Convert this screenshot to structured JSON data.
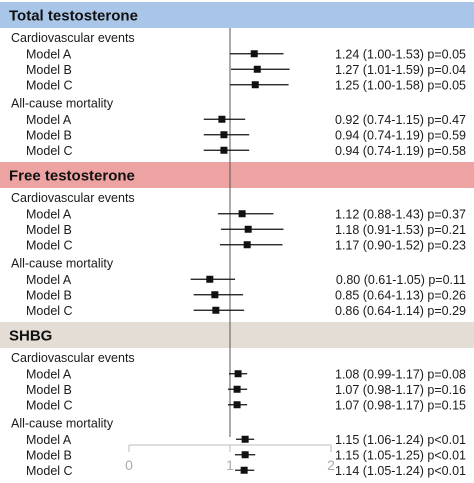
{
  "chart_data": {
    "type": "forest",
    "xlim": [
      0,
      2
    ],
    "reference_line": 1,
    "xticks": [
      "0",
      "1",
      "2"
    ],
    "colors": {
      "Total testosterone": "#a9c6e8",
      "Free testosterone": "#eea3a3",
      "SHBG": "#e3ddd6",
      "marker": "#111111",
      "reference": "#555555",
      "axis": "#bbbbbb"
    },
    "sections": [
      {
        "title": "Total testosterone",
        "groups": [
          {
            "name": "Cardiovascular events",
            "rows": [
              {
                "label": "Model A",
                "estimate": 1.24,
                "ci_low": 1.0,
                "ci_high": 1.53,
                "text": "1.24 (1.00-1.53) p=0.05"
              },
              {
                "label": "Model B",
                "estimate": 1.27,
                "ci_low": 1.01,
                "ci_high": 1.59,
                "text": "1.27 (1.01-1.59) p=0.04"
              },
              {
                "label": "Model C",
                "estimate": 1.25,
                "ci_low": 1.0,
                "ci_high": 1.58,
                "text": "1.25 (1.00-1.58) p=0.05"
              }
            ]
          },
          {
            "name": "All-cause mortality",
            "rows": [
              {
                "label": "Model A",
                "estimate": 0.92,
                "ci_low": 0.74,
                "ci_high": 1.15,
                "text": "0.92 (0.74-1.15) p=0.47"
              },
              {
                "label": "Model B",
                "estimate": 0.94,
                "ci_low": 0.74,
                "ci_high": 1.19,
                "text": "0.94 (0.74-1.19) p=0.59"
              },
              {
                "label": "Model C",
                "estimate": 0.94,
                "ci_low": 0.74,
                "ci_high": 1.19,
                "text": "0.94 (0.74-1.19) p=0.58"
              }
            ]
          }
        ]
      },
      {
        "title": "Free testosterone",
        "groups": [
          {
            "name": "Cardiovascular events",
            "rows": [
              {
                "label": "Model A",
                "estimate": 1.12,
                "ci_low": 0.88,
                "ci_high": 1.43,
                "text": "1.12 (0.88-1.43) p=0.37"
              },
              {
                "label": "Model B",
                "estimate": 1.18,
                "ci_low": 0.91,
                "ci_high": 1.53,
                "text": "1.18 (0.91-1.53) p=0.21"
              },
              {
                "label": "Model C",
                "estimate": 1.17,
                "ci_low": 0.9,
                "ci_high": 1.52,
                "text": "1.17 (0.90-1.52) p=0.23"
              }
            ]
          },
          {
            "name": "All-cause mortality",
            "rows": [
              {
                "label": "Model A",
                "estimate": 0.8,
                "ci_low": 0.61,
                "ci_high": 1.05,
                "text": "0.80 (0.61-1.05) p=0.11"
              },
              {
                "label": "Model B",
                "estimate": 0.85,
                "ci_low": 0.64,
                "ci_high": 1.13,
                "text": "0.85 (0.64-1.13) p=0.26"
              },
              {
                "label": "Model C",
                "estimate": 0.86,
                "ci_low": 0.64,
                "ci_high": 1.14,
                "text": "0.86 (0.64-1.14) p=0.29"
              }
            ]
          }
        ]
      },
      {
        "title": "SHBG",
        "groups": [
          {
            "name": "Cardiovascular events",
            "rows": [
              {
                "label": "Model A",
                "estimate": 1.08,
                "ci_low": 0.99,
                "ci_high": 1.17,
                "text": "1.08 (0.99-1.17) p=0.08"
              },
              {
                "label": "Model B",
                "estimate": 1.07,
                "ci_low": 0.98,
                "ci_high": 1.17,
                "text": "1.07 (0.98-1.17) p=0.16"
              },
              {
                "label": "Model C",
                "estimate": 1.07,
                "ci_low": 0.98,
                "ci_high": 1.17,
                "text": "1.07 (0.98-1.17) p=0.15"
              }
            ]
          },
          {
            "name": "All-cause mortality",
            "rows": [
              {
                "label": "Model A",
                "estimate": 1.15,
                "ci_low": 1.06,
                "ci_high": 1.24,
                "text": "1.15 (1.06-1.24) p<0.01"
              },
              {
                "label": "Model B",
                "estimate": 1.15,
                "ci_low": 1.05,
                "ci_high": 1.25,
                "text": "1.15 (1.05-1.25) p<0.01"
              },
              {
                "label": "Model C",
                "estimate": 1.14,
                "ci_low": 1.05,
                "ci_high": 1.24,
                "text": "1.14 (1.05-1.24) p<0.01"
              }
            ]
          }
        ]
      }
    ]
  }
}
